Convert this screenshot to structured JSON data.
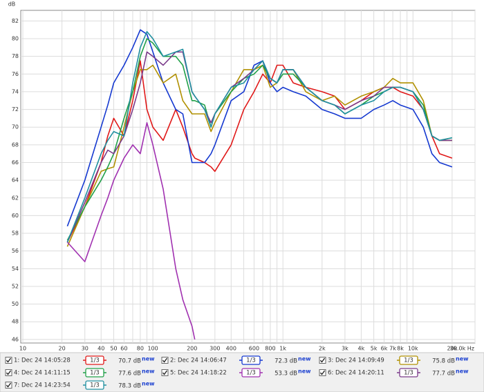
{
  "chart_data": {
    "type": "line",
    "y_label": "dB",
    "log_x": true,
    "grid": true,
    "xlim": [
      10,
      30000
    ],
    "ylim": [
      45.6,
      83.2
    ],
    "xticks": [
      10,
      20,
      30,
      40,
      50,
      60,
      80,
      100,
      200,
      300,
      400,
      600,
      800,
      {
        "value": 1000,
        "label": "1k"
      },
      {
        "value": 2000,
        "label": "2k"
      },
      {
        "value": 3000,
        "label": "3k"
      },
      {
        "value": 4000,
        "label": "4k"
      },
      {
        "value": 5000,
        "label": "5k"
      },
      {
        "value": 6000,
        "label": "6k"
      },
      {
        "value": 7000,
        "label": "7k"
      },
      {
        "value": 8000,
        "label": "8k"
      },
      {
        "value": 10000,
        "label": "10k"
      },
      {
        "value": 20000,
        "label": "20k"
      },
      {
        "value": 30000,
        "label": "30.0k Hz"
      }
    ],
    "x_minor_grid": [
      70,
      90,
      500,
      700,
      900,
      9000
    ],
    "yticks": [
      46,
      48,
      50,
      52,
      54,
      56,
      58,
      60,
      62,
      64,
      66,
      68,
      70,
      72,
      74,
      76,
      78,
      80,
      82
    ],
    "x": [
      22,
      30,
      40,
      45,
      50,
      60,
      70,
      80,
      90,
      100,
      120,
      150,
      170,
      200,
      210,
      250,
      280,
      300,
      400,
      500,
      600,
      700,
      800,
      900,
      1000,
      1200,
      1500,
      2000,
      2500,
      3000,
      4000,
      5000,
      6000,
      7000,
      8000,
      10000,
      12000,
      14000,
      16000,
      20000
    ],
    "series": [
      {
        "name": "1: Dec 24 14:05:28",
        "color": "#e01818",
        "smoothing": "1/3",
        "level": "70.7 dB",
        "badge": "new",
        "values": [
          57,
          61,
          66,
          69,
          71,
          69,
          73,
          77.5,
          72,
          70,
          68.5,
          72,
          70,
          67,
          66.5,
          66,
          65.5,
          65,
          68,
          72,
          74,
          76,
          75,
          77,
          77,
          75,
          74.5,
          74,
          73.5,
          72,
          73,
          74,
          74.5,
          74.5,
          74,
          73.5,
          72,
          69,
          67,
          66.5
        ]
      },
      {
        "name": "2: Dec 24 14:06:47",
        "color": "#1438d0",
        "smoothing": "1/3",
        "level": "72.3 dB",
        "badge": "new",
        "values": [
          58.8,
          64,
          70,
          72.5,
          75,
          77,
          79,
          81,
          80.5,
          78.5,
          75,
          72,
          71.5,
          66,
          66,
          66,
          67,
          68,
          73,
          74,
          77,
          77.5,
          75,
          74,
          74.5,
          74,
          73.5,
          72,
          71.5,
          71,
          71,
          72,
          72.5,
          73,
          72.5,
          72,
          70,
          67,
          66,
          65.5
        ]
      },
      {
        "name": "3: Dec 24 14:09:49",
        "color": "#b09000",
        "smoothing": "1/3",
        "level": "75.8 dB",
        "badge": "new",
        "values": [
          56.5,
          61,
          65,
          65.3,
          65.5,
          70,
          74,
          76.5,
          76.5,
          77,
          75,
          76,
          73,
          71.5,
          71.5,
          71.5,
          69.5,
          70.5,
          74,
          76.5,
          76.5,
          77,
          74.5,
          75,
          76.5,
          76.5,
          74,
          73,
          73.5,
          72.5,
          73.5,
          74,
          74.5,
          75.5,
          75,
          75,
          73,
          69,
          68.5,
          68.5
        ]
      },
      {
        "name": "4: Dec 24 14:11:15",
        "color": "#20a048",
        "smoothing": "1/3",
        "level": "77.6 dB",
        "badge": "new",
        "values": [
          57.2,
          61,
          64,
          65.5,
          67,
          71,
          74,
          78,
          80,
          79.5,
          78,
          78,
          77,
          73,
          73,
          72.5,
          70,
          71.5,
          74,
          75.5,
          76,
          77,
          75.5,
          75,
          76,
          76,
          74.5,
          73,
          72.5,
          71.5,
          72.5,
          73.5,
          74,
          74.5,
          74.5,
          74,
          72.5,
          69,
          68.5,
          68.8
        ]
      },
      {
        "name": "5: Dec 24 14:18:22",
        "color": "#a030b0",
        "smoothing": "1/3",
        "level": "53.3 dB",
        "badge": "new",
        "values": [
          57,
          54.8,
          60,
          62,
          64,
          66.5,
          68,
          67,
          70.5,
          68,
          63,
          54,
          50.5,
          47.5,
          46,
          null,
          null,
          null,
          null,
          null,
          null,
          null,
          null,
          null,
          null,
          null,
          null,
          null,
          null,
          null,
          null,
          null,
          null,
          null,
          null,
          null,
          null,
          null,
          null,
          null
        ]
      },
      {
        "name": "6: Dec 24 14:20:11",
        "color": "#7a3a8a",
        "smoothing": "1/3",
        "level": "77.7 dB",
        "badge": "new",
        "values": [
          57,
          61.5,
          66,
          67.4,
          67,
          69,
          72,
          75,
          78.5,
          78,
          77,
          78.5,
          78.5,
          74,
          73.5,
          72,
          70.5,
          71.5,
          74.5,
          75.5,
          76.5,
          77.5,
          75.5,
          75,
          76.5,
          76.5,
          74.5,
          73,
          72.5,
          72,
          73,
          73.5,
          74.5,
          74.5,
          74.5,
          74,
          72,
          69,
          68.5,
          68.5
        ]
      },
      {
        "name": "7: Dec 24 14:23:54",
        "color": "#2090a0",
        "smoothing": "1/3",
        "level": "78.3 dB",
        "badge": "new",
        "values": [
          57,
          62,
          67,
          68.5,
          69.5,
          69,
          75,
          79,
          80.8,
          80,
          78,
          78.5,
          78.8,
          74,
          73.5,
          72,
          70,
          71.5,
          74.5,
          75,
          76.5,
          77.5,
          75.5,
          75,
          76.5,
          76.5,
          74.5,
          73,
          72.5,
          71.5,
          72.5,
          73,
          74,
          74.5,
          74.5,
          74,
          72,
          69,
          68.5,
          68.8
        ]
      }
    ]
  }
}
